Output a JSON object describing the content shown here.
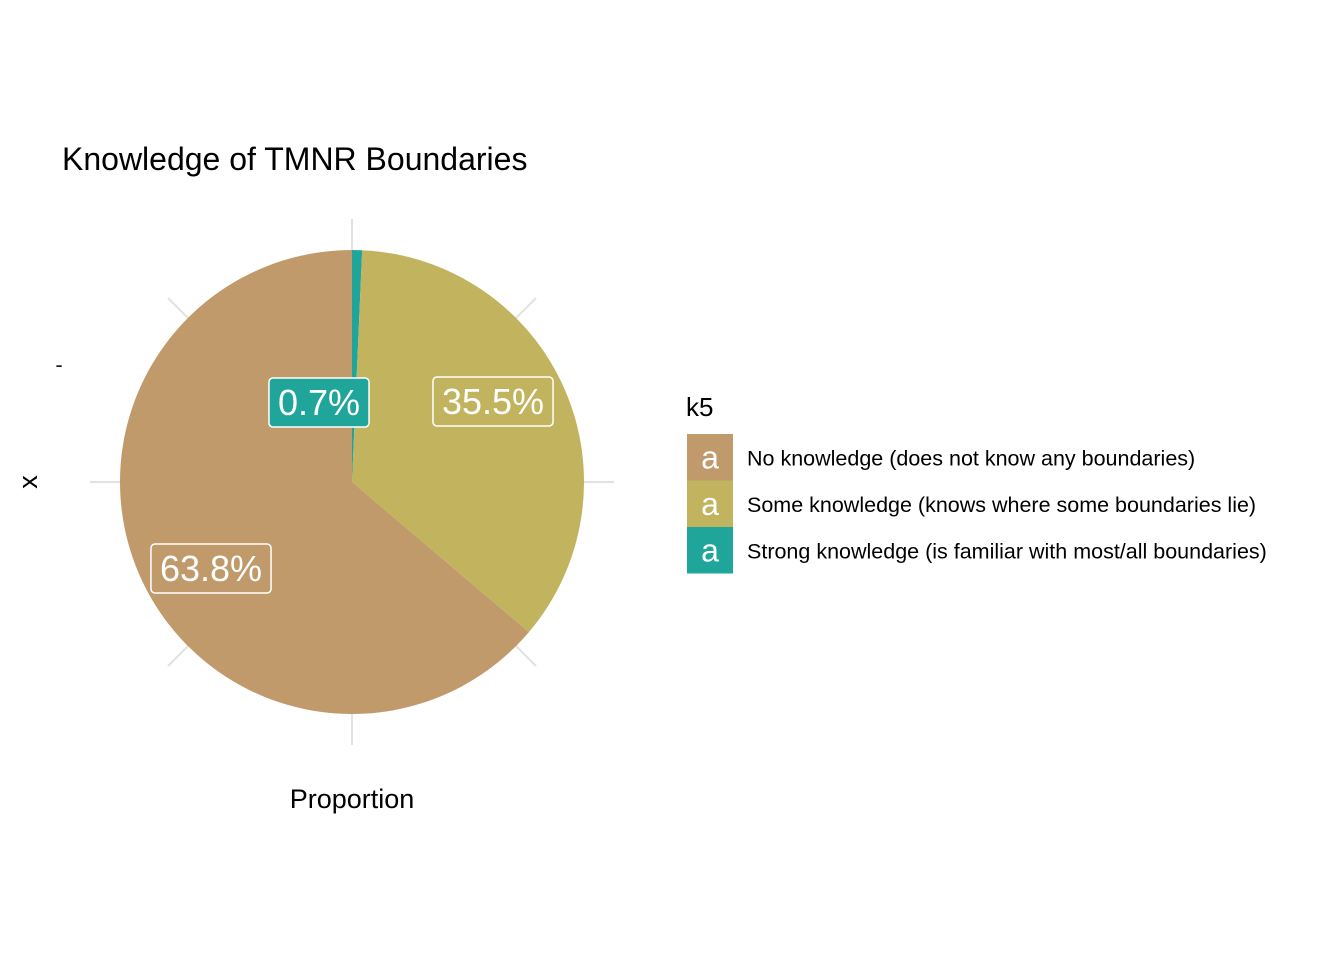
{
  "chart_data": {
    "type": "pie",
    "title": "Knowledge of TMNR Boundaries",
    "xlabel": "Proportion",
    "ylabel": "x",
    "y_tick_labels": [
      "-"
    ],
    "grid": true,
    "legend": {
      "title": "k5",
      "placement": "right",
      "key_glyph": "a"
    },
    "categories": [
      "No knowledge (does not know any boundaries)",
      "Some knowledge (knows where some boundaries lie)",
      "Strong knowledge (is familiar with most/all boundaries)"
    ],
    "values": [
      63.8,
      35.5,
      0.7
    ],
    "labels": [
      "63.8%",
      "35.5%",
      "0.7%"
    ],
    "colors": [
      "#C19A6B",
      "#C2B45E",
      "#20A59B"
    ],
    "start_angle_deg": 0,
    "direction": "clockwise_from_top_reversed"
  }
}
